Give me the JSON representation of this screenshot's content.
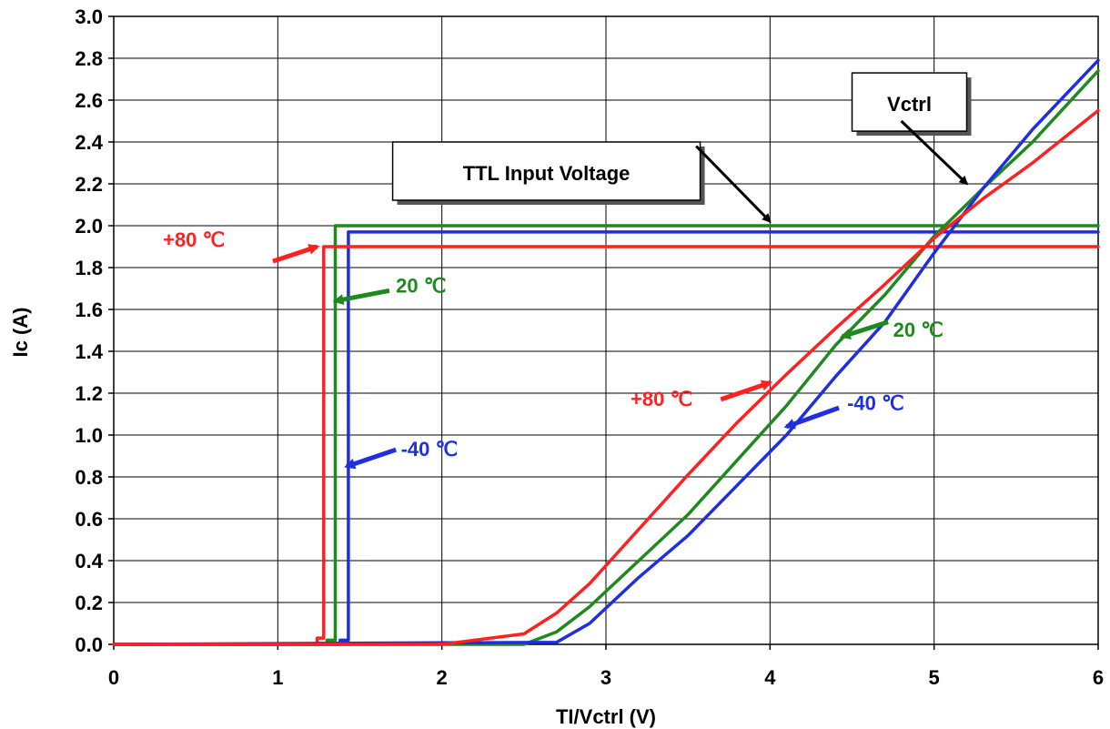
{
  "chart_data": {
    "type": "line",
    "title": "",
    "xlabel": "TI/Vctrl (V)",
    "ylabel": "Ic (A)",
    "xlim": [
      0,
      6
    ],
    "ylim": [
      0,
      3
    ],
    "grid": true,
    "x_ticks": [
      0,
      1,
      2,
      3,
      4,
      5,
      6
    ],
    "y_ticks": [
      0.0,
      0.2,
      0.4,
      0.6,
      0.8,
      1.0,
      1.2,
      1.4,
      1.6,
      1.8,
      2.0,
      2.2,
      2.4,
      2.6,
      2.8,
      3.0
    ],
    "x_tick_labels": [
      "0",
      "1",
      "2",
      "3",
      "4",
      "5",
      "6"
    ],
    "y_tick_labels": [
      "0.0",
      "0.2",
      "0.4",
      "0.6",
      "0.8",
      "1.0",
      "1.2",
      "1.4",
      "1.6",
      "1.8",
      "2.0",
      "2.2",
      "2.4",
      "2.6",
      "2.8",
      "3.0"
    ],
    "colors": {
      "red": "#ff2020",
      "green": "#1e8a1e",
      "blue": "#1e2ee0"
    },
    "series": [
      {
        "group": "TTL",
        "color_key": "green",
        "x": [
          0,
          1.3,
          1.3,
          1.35,
          1.35,
          6
        ],
        "y": [
          0,
          0,
          0.02,
          0.02,
          2.0,
          2.0
        ]
      },
      {
        "group": "TTL",
        "color_key": "blue",
        "x": [
          0,
          1.38,
          1.38,
          1.43,
          1.43,
          6
        ],
        "y": [
          0,
          0,
          0.02,
          0.02,
          1.97,
          1.97
        ]
      },
      {
        "group": "TTL",
        "color_key": "red",
        "x": [
          0,
          1.24,
          1.24,
          1.28,
          1.28,
          6
        ],
        "y": [
          0,
          0,
          0.03,
          0.03,
          1.9,
          1.9
        ]
      },
      {
        "group": "Vctrl",
        "color_key": "green",
        "x": [
          0,
          2.5,
          2.7,
          2.9,
          3.2,
          3.5,
          3.8,
          4.1,
          4.4,
          4.7,
          5.0,
          5.3,
          5.6,
          6.0
        ],
        "y": [
          0,
          0,
          0.06,
          0.18,
          0.4,
          0.62,
          0.88,
          1.14,
          1.43,
          1.67,
          1.95,
          2.18,
          2.4,
          2.74
        ]
      },
      {
        "group": "Vctrl",
        "color_key": "blue",
        "x": [
          0,
          2.7,
          2.9,
          3.2,
          3.5,
          3.8,
          4.1,
          4.4,
          4.7,
          5.0,
          5.3,
          5.6,
          6.0
        ],
        "y": [
          0,
          0.01,
          0.1,
          0.32,
          0.52,
          0.76,
          1.0,
          1.28,
          1.54,
          1.87,
          2.18,
          2.46,
          2.79
        ]
      },
      {
        "group": "Vctrl",
        "color_key": "red",
        "x": [
          0,
          2.0,
          2.5,
          2.7,
          2.9,
          3.2,
          3.5,
          3.8,
          4.1,
          4.4,
          4.7,
          5.0,
          5.3,
          5.6,
          6.0
        ],
        "y": [
          0,
          0,
          0.05,
          0.15,
          0.29,
          0.55,
          0.81,
          1.06,
          1.29,
          1.51,
          1.72,
          1.94,
          2.13,
          2.3,
          2.55
        ]
      }
    ],
    "callouts": [
      {
        "text": "TTL Input Voltage",
        "x": 1.7,
        "y": 2.4
      },
      {
        "text": "Vctrl",
        "x": 4.5,
        "y": 2.73
      }
    ],
    "annotations": [
      {
        "text": "+80 ℃",
        "color_key": "red",
        "x": 0.3,
        "y": 1.9
      },
      {
        "text": "20 ℃",
        "color_key": "green",
        "x": 1.72,
        "y": 1.68
      },
      {
        "text": "-40 ℃",
        "color_key": "blue",
        "x": 1.75,
        "y": 0.9
      },
      {
        "text": "20 ℃",
        "color_key": "green",
        "x": 4.75,
        "y": 1.47
      },
      {
        "text": "+80 ℃",
        "color_key": "red",
        "x": 3.15,
        "y": 1.14
      },
      {
        "text": "-40 ℃",
        "color_key": "blue",
        "x": 4.47,
        "y": 1.12
      }
    ]
  }
}
